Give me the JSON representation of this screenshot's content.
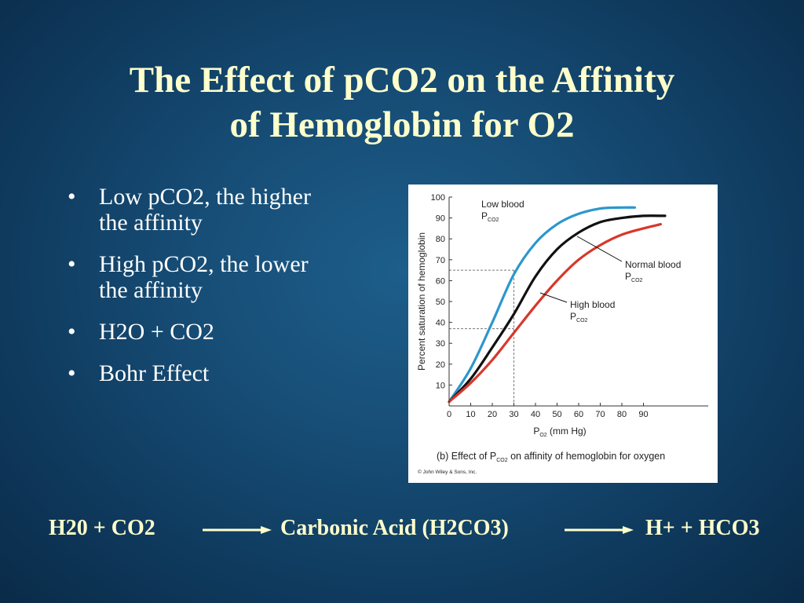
{
  "slide": {
    "title_line1": "The Effect of pCO2 on the Affinity",
    "title_line2": "of Hemoglobin for O2",
    "bullets": [
      {
        "line1": "Low pCO2, the higher",
        "line2": "the affinity"
      },
      {
        "line1": "High pCO2, the lower",
        "line2": "the affinity"
      },
      {
        "line1": "H2O + CO2",
        "line2": ""
      },
      {
        "line1": "Bohr Effect",
        "line2": ""
      }
    ],
    "bullet_glyph": "•",
    "equation": {
      "reactants": "H20 + CO2",
      "intermediate": "Carbonic Acid (H2CO3)",
      "products": "H+  + HCO3"
    },
    "colors": {
      "title": "#ffffcc",
      "bullet_text": "#ffffff",
      "equation": "#ffffcc",
      "low_curve": "#2c97cc",
      "normal_curve": "#111111",
      "high_curve": "#d8372b"
    }
  },
  "chart_data": {
    "type": "line",
    "title": "",
    "caption_prefix": "(b) Effect of P",
    "caption_sub": "CO2",
    "caption_suffix": " on affinity of hemoglobin for oxygen",
    "xlabel_main": "P",
    "xlabel_sub": "O2",
    "xlabel_unit": " (mm Hg)",
    "ylabel": "Percent saturation of hemoglobin",
    "copyright": "© John Wiley & Sons, Inc.",
    "xlim": [
      0,
      120
    ],
    "ylim": [
      0,
      100
    ],
    "x_ticks": [
      0,
      10,
      20,
      30,
      40,
      50,
      60,
      70,
      80,
      90
    ],
    "y_ticks": [
      10,
      20,
      30,
      40,
      50,
      60,
      70,
      80,
      90,
      100
    ],
    "series": [
      {
        "name_main": "Low blood",
        "name_p": "P",
        "name_sub": "CO2",
        "color": "#2c97cc",
        "x": [
          0,
          10,
          20,
          30,
          40,
          50,
          60,
          70,
          80,
          86
        ],
        "y": [
          2,
          18,
          40,
          63,
          78,
          87,
          92,
          94.5,
          95,
          95
        ]
      },
      {
        "name_main": "Normal blood",
        "name_p": "P",
        "name_sub": "CO2",
        "color": "#111111",
        "x": [
          0,
          10,
          20,
          30,
          40,
          50,
          60,
          70,
          80,
          90,
          100
        ],
        "y": [
          2,
          13,
          28,
          44,
          62,
          75,
          83,
          88,
          90,
          91,
          91
        ]
      },
      {
        "name_main": "High blood",
        "name_p": "P",
        "name_sub": "CO2",
        "color": "#d8372b",
        "x": [
          0,
          10,
          20,
          30,
          40,
          50,
          60,
          70,
          80,
          90,
          98
        ],
        "y": [
          2,
          11,
          22,
          35,
          48,
          60,
          70,
          77,
          82,
          85,
          87
        ]
      }
    ],
    "reference_lines": [
      {
        "x": 30,
        "y": 65
      },
      {
        "x": 30,
        "y": 37
      }
    ],
    "grid": false
  }
}
